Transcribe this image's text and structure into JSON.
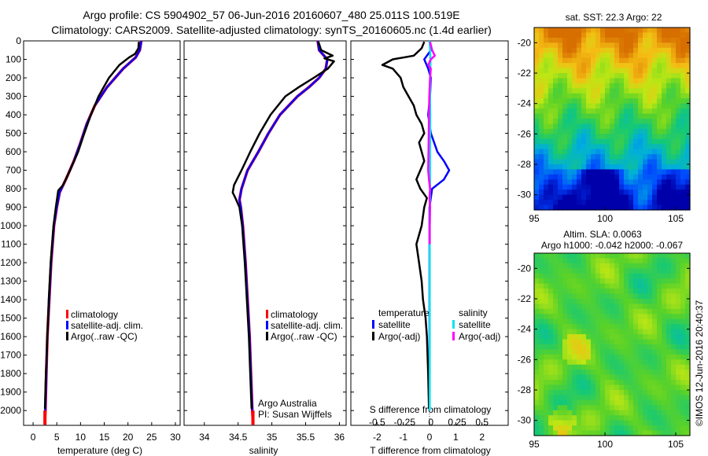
{
  "header": {
    "line1": "Argo profile: CS 5904902_57 06-Jun-2016 20160607_480 25.011S 100.519E",
    "line2": "Climatology: CARS2009. Satellite-adjusted climatology: synTS_20160605.nc (1.4d earlier)"
  },
  "side_stamp": "©IMOS 12-Jun-2016 20:40:37",
  "colors": {
    "climatology": "#ff0000",
    "satellite": "#0000ff",
    "argo": "#000000",
    "sal_satellite": "#00e5ee",
    "sal_argo": "#ff00ff"
  },
  "chart_data": [
    {
      "id": "temperature",
      "type": "line",
      "xlabel": "temperature (deg C)",
      "xlim": [
        -2,
        31
      ],
      "xticks": [
        0,
        5,
        10,
        15,
        20,
        25,
        30
      ],
      "ylim": [
        0,
        2080
      ],
      "yticks": [
        0,
        100,
        200,
        300,
        400,
        500,
        600,
        700,
        800,
        900,
        1000,
        1100,
        1200,
        1300,
        1400,
        1500,
        1600,
        1700,
        1800,
        1900,
        2000
      ],
      "legend": [
        "climatology",
        "satellite-adj. clim.",
        "Argo(..raw -QC)"
      ],
      "series": [
        {
          "name": "climatology",
          "depth": [
            0,
            50,
            90,
            150,
            250,
            350,
            450,
            550,
            650,
            750,
            820,
            900,
            1000,
            1200,
            1400,
            1600,
            1800,
            2000,
            2060
          ],
          "values": [
            22.8,
            22.5,
            21.6,
            19.0,
            15.6,
            13.0,
            11.3,
            10.0,
            8.6,
            6.9,
            5.6,
            5.0,
            4.4,
            3.8,
            3.4,
            3.0,
            2.8,
            2.6,
            2.5
          ]
        },
        {
          "name": "satellite-adj. clim.",
          "depth": [
            0,
            50,
            90,
            150,
            250,
            350,
            450,
            550,
            650,
            750,
            820,
            900,
            1000,
            1200,
            1400,
            1600,
            1800,
            2000,
            2060
          ],
          "values": [
            22.8,
            22.5,
            21.6,
            19.0,
            15.6,
            13.0,
            11.3,
            10.0,
            8.6,
            6.9,
            5.6,
            5.0,
            4.4,
            3.8,
            3.4,
            3.0,
            2.8,
            2.6,
            2.5
          ]
        },
        {
          "name": "Argo(..raw -QC)",
          "depth": [
            5,
            40,
            70,
            90,
            130,
            200,
            300,
            400,
            500,
            600,
            700,
            780,
            810,
            900,
            1000,
            1200,
            1400,
            1600,
            1800,
            1990
          ],
          "values": [
            22.3,
            22.2,
            21.5,
            20.2,
            18.2,
            16.0,
            13.8,
            12.2,
            10.8,
            9.5,
            7.8,
            6.3,
            5.3,
            4.8,
            4.3,
            3.7,
            3.3,
            3.0,
            2.7,
            2.5
          ]
        }
      ]
    },
    {
      "id": "salinity",
      "type": "line",
      "xlabel": "salinity",
      "xlim": [
        33.7,
        36.1
      ],
      "xticks": [
        34,
        34.5,
        35,
        35.5,
        36
      ],
      "ylim": [
        0,
        2080
      ],
      "legend": [
        "climatology",
        "satellite-adj. clim.",
        "Argo(..raw -QC)"
      ],
      "annotation": [
        "Argo Australia",
        "PI: Susan Wijffels"
      ],
      "series": [
        {
          "name": "climatology",
          "depth": [
            0,
            50,
            100,
            150,
            200,
            250,
            300,
            400,
            500,
            600,
            700,
            800,
            860,
            900,
            1000,
            1200,
            1400,
            1600,
            1800,
            2000,
            2060
          ],
          "values": [
            35.68,
            35.7,
            35.82,
            35.8,
            35.7,
            35.55,
            35.38,
            35.12,
            34.95,
            34.8,
            34.64,
            34.55,
            34.52,
            34.54,
            34.57,
            34.61,
            34.64,
            34.67,
            34.69,
            34.71,
            34.72
          ]
        },
        {
          "name": "satellite-adj. clim.",
          "depth": [
            0,
            50,
            100,
            150,
            200,
            250,
            300,
            400,
            500,
            600,
            700,
            800,
            860,
            900,
            1000,
            1200,
            1400,
            1600,
            1800,
            2000,
            2060
          ],
          "values": [
            35.68,
            35.7,
            35.82,
            35.8,
            35.7,
            35.55,
            35.38,
            35.12,
            34.95,
            34.8,
            34.64,
            34.55,
            34.52,
            34.54,
            34.57,
            34.61,
            34.64,
            34.67,
            34.69,
            34.71,
            34.72
          ]
        },
        {
          "name": "Argo(..raw -QC)",
          "depth": [
            5,
            50,
            80,
            95,
            110,
            150,
            200,
            250,
            300,
            400,
            500,
            600,
            700,
            780,
            820,
            850,
            900,
            1000,
            1200,
            1400,
            1600,
            1800,
            1990
          ],
          "values": [
            35.69,
            35.73,
            35.9,
            35.78,
            35.92,
            35.83,
            35.62,
            35.4,
            35.2,
            34.98,
            34.82,
            34.68,
            34.55,
            34.44,
            34.42,
            34.46,
            34.52,
            34.56,
            34.6,
            34.63,
            34.66,
            34.68,
            34.7
          ]
        }
      ]
    },
    {
      "id": "difference",
      "type": "line",
      "xlabel": "T difference from climatology",
      "xlabel_top": "S difference from climatology",
      "xlim": [
        -3,
        3
      ],
      "xticks": [
        -2,
        -1,
        0,
        1,
        2
      ],
      "s_tick_labels": [
        "-0.5",
        "-0.25",
        "0",
        "0.25",
        "0.5"
      ],
      "ylim": [
        0,
        2080
      ],
      "legend_headers": [
        "temperature",
        "salinity"
      ],
      "legend": [
        "satellite",
        "Argo(-adj)",
        "satellite",
        "Argo(-adj)"
      ],
      "series": [
        {
          "name": "temperature satellite",
          "depth": [
            0,
            50,
            100,
            150,
            200,
            300,
            400,
            500,
            600,
            650,
            700,
            750,
            800,
            900,
            1000,
            1200,
            2000
          ],
          "values": [
            0,
            0.05,
            -0.2,
            -0.05,
            0.05,
            0.02,
            -0.05,
            0.05,
            0.3,
            0.55,
            0.75,
            0.55,
            0.1,
            0,
            0,
            0,
            0
          ]
        },
        {
          "name": "temperature Argo(-adj)",
          "depth": [
            5,
            40,
            80,
            100,
            130,
            150,
            200,
            250,
            300,
            350,
            400,
            450,
            500,
            550,
            600,
            650,
            700,
            750,
            800,
            850,
            900,
            1000,
            1100,
            1200,
            1300,
            1400,
            1500,
            1600,
            1800,
            1990
          ],
          "values": [
            -0.2,
            -0.3,
            -0.6,
            -1.4,
            -1.8,
            -1.4,
            -1.1,
            -1.0,
            -0.8,
            -0.6,
            -0.5,
            -0.3,
            -0.2,
            -0.4,
            -0.3,
            -0.2,
            -0.35,
            -0.5,
            -0.35,
            -0.1,
            -0.2,
            -0.3,
            -0.5,
            -0.4,
            -0.3,
            -0.25,
            -0.15,
            -0.1,
            -0.05,
            -0.02
          ]
        },
        {
          "name": "salinity satellite",
          "depth": [
            0,
            50,
            100,
            200,
            300,
            400,
            600,
            800,
            1000,
            1500,
            2000
          ],
          "values": [
            0,
            0.02,
            0.04,
            0.03,
            0.02,
            0.03,
            0.02,
            0.02,
            0.01,
            0.01,
            0.01
          ]
        },
        {
          "name": "salinity Argo(-adj)",
          "depth": [
            5,
            50,
            80,
            100,
            130,
            150,
            200,
            300,
            400,
            500,
            600,
            700,
            750,
            800,
            850,
            900,
            1000,
            1100
          ],
          "values": [
            0.02,
            0.1,
            0.2,
            0.05,
            -0.05,
            0.05,
            0.02,
            -0.01,
            -0.02,
            -0.03,
            -0.04,
            -0.05,
            -0.02,
            0.02,
            0.0,
            0.02,
            0.01,
            0.01
          ]
        }
      ]
    },
    {
      "id": "sst_map",
      "type": "heatmap",
      "title": "sat. SST: 22.3  Argo: 22",
      "xlim": [
        95,
        106
      ],
      "xticks": [
        95,
        100,
        105
      ],
      "ylim": [
        -31,
        -19
      ],
      "yticks": [
        -20,
        -22,
        -24,
        -26,
        -28,
        -30
      ]
    },
    {
      "id": "sla_map",
      "type": "heatmap",
      "title_lines": [
        "Altim. SLA: 0.0063",
        "Argo h1000: -0.042 h2000: -0.067"
      ],
      "xlim": [
        95,
        106
      ],
      "xticks": [
        95,
        100,
        105
      ],
      "ylim": [
        -31,
        -19
      ],
      "yticks": [
        -20,
        -22,
        -24,
        -26,
        -28,
        -30
      ]
    }
  ]
}
